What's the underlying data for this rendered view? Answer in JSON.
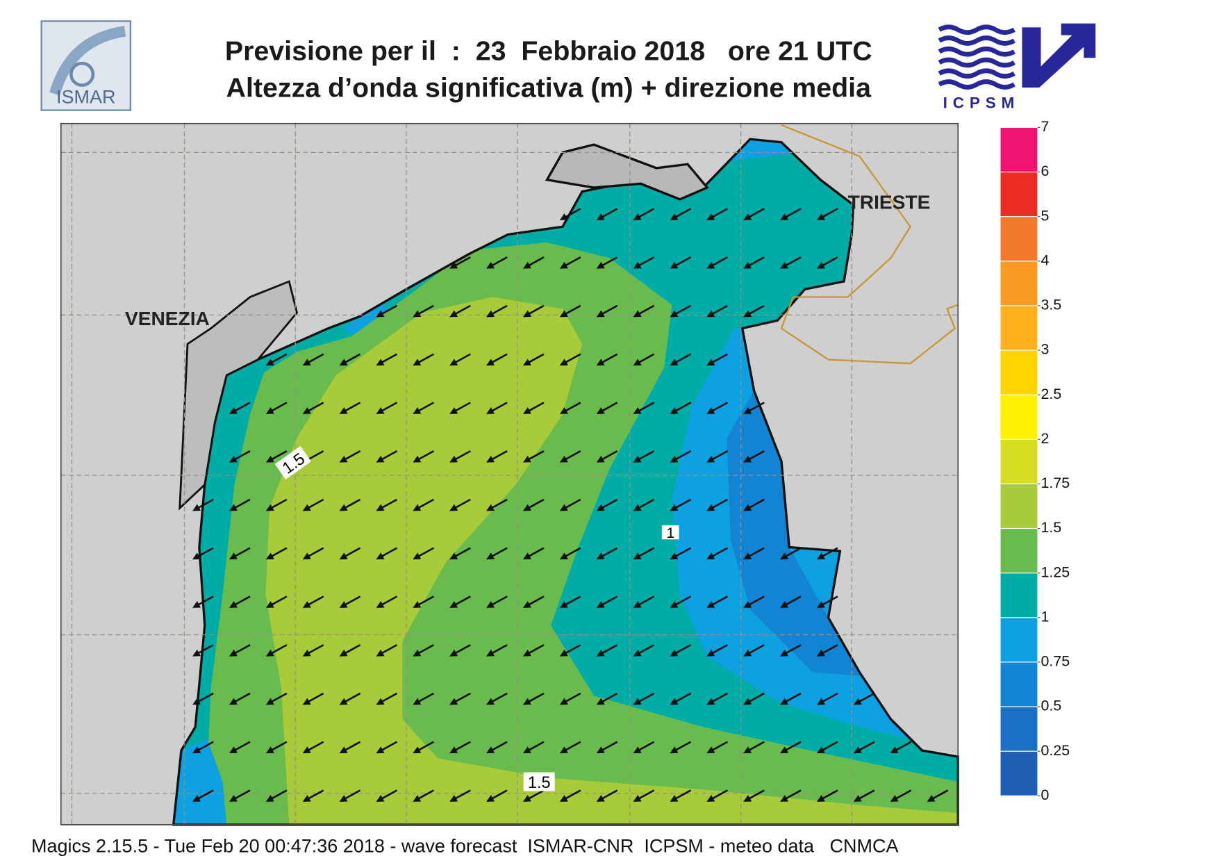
{
  "header": {
    "title_line1": "Previsione per il  :  23  Febbraio 2018   ore 21 UTC",
    "title_line2": "Altezza d’onda significativa (m) + direzione media",
    "logo_left": "ISMAR",
    "logo_right": "ICPSM"
  },
  "map": {
    "places": [
      "VENEZIA",
      "TRIESTE"
    ],
    "contour_labels": [
      "1.5",
      "1",
      "1.5"
    ]
  },
  "colorbar": {
    "levels": [
      0,
      0.25,
      0.5,
      0.75,
      1,
      1.25,
      1.5,
      1.75,
      2,
      2.5,
      3,
      3.5,
      4,
      5,
      6,
      7
    ],
    "colors": [
      "#1f5fb3",
      "#1a70c2",
      "#1384d3",
      "#0ea1e2",
      "#00aca6",
      "#6abb4e",
      "#a8cb39",
      "#d6dd22",
      "#fff200",
      "#ffd400",
      "#ffb21e",
      "#f99a24",
      "#f37a2a",
      "#ee2a24",
      "#ee1470"
    ]
  },
  "footer": "Magics 2.15.5 - Tue Feb 20 00:47:36 2018 - wave forecast  ISMAR-CNR  ICPSM - meteo data   CNMCA"
}
